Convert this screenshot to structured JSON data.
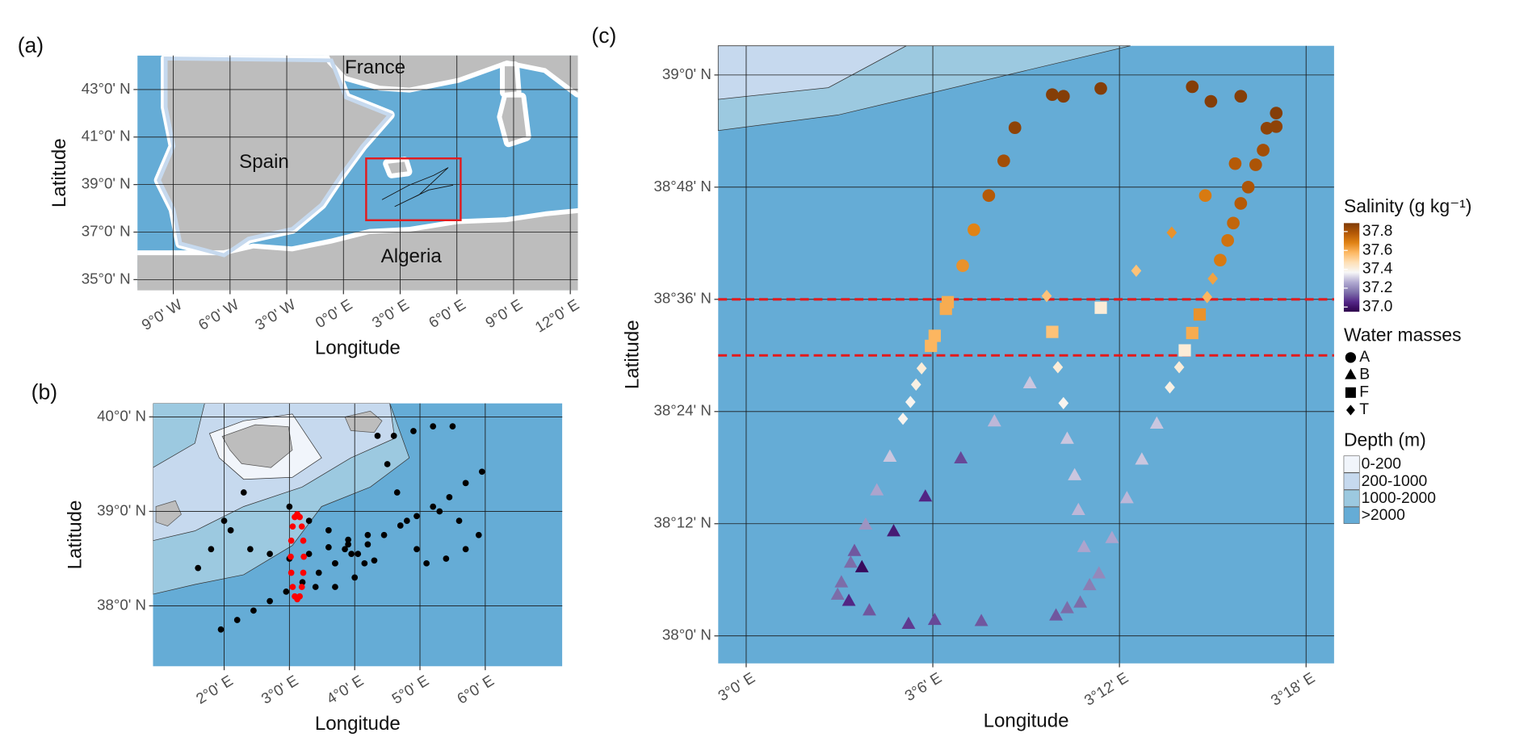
{
  "chart_data": [
    {
      "type": "map",
      "panel_label": "(a)",
      "xlabel": "Longitude",
      "ylabel": "Latitude",
      "xlim": [
        -10.9,
        12.4
      ],
      "ylim": [
        34.55,
        44.43
      ],
      "grid": true,
      "xticks": [
        {
          "value": -9,
          "label": "9°0' W"
        },
        {
          "value": -6,
          "label": "6°0' W"
        },
        {
          "value": -3,
          "label": "3°0' W"
        },
        {
          "value": 0,
          "label": "0°0' E"
        },
        {
          "value": 3,
          "label": "3°0' E"
        },
        {
          "value": 6,
          "label": "6°0' E"
        },
        {
          "value": 9,
          "label": "9°0' E"
        },
        {
          "value": 12,
          "label": "12°0' E"
        }
      ],
      "yticks": [
        {
          "value": 35,
          "label": "35°0' N"
        },
        {
          "value": 37,
          "label": "37°0' N"
        },
        {
          "value": 39,
          "label": "39°0' N"
        },
        {
          "value": 41,
          "label": "41°0' N"
        },
        {
          "value": 43,
          "label": "43°0' N"
        }
      ],
      "annotations": [
        "France",
        "Spain",
        "Algeria"
      ],
      "box": {
        "x": [
          1.2,
          6.2
        ],
        "y": [
          37.5,
          40.1
        ],
        "color": "#e41a1c"
      }
    },
    {
      "type": "scatter",
      "panel_label": "(b)",
      "xlabel": "Longitude",
      "ylabel": "Latitude",
      "xlim": [
        0.91,
        7.18
      ],
      "ylim": [
        37.36,
        40.144
      ],
      "grid": true,
      "xticks": [
        {
          "value": 2,
          "label": "2°0' E"
        },
        {
          "value": 3,
          "label": "3°0' E"
        },
        {
          "value": 4,
          "label": "4°0' E"
        },
        {
          "value": 5,
          "label": "5°0' E"
        },
        {
          "value": 6,
          "label": "6°0' E"
        }
      ],
      "yticks": [
        {
          "value": 38,
          "label": "38°0' N"
        },
        {
          "value": 39,
          "label": "39°0' N"
        },
        {
          "value": 40,
          "label": "40°0' N"
        }
      ],
      "series": [
        {
          "color": "#000000",
          "x": [
            1.95,
            2.2,
            2.45,
            2.7,
            2.95,
            3.2,
            3.45,
            3.7,
            3.95,
            4.2,
            4.45,
            4.7,
            4.95,
            5.2,
            5.45,
            5.7,
            5.95,
            5.5,
            5.2,
            4.9,
            4.6,
            4.35,
            4.5,
            4.65,
            4.8,
            4.95,
            5.1,
            5.4,
            5.7,
            5.9,
            5.6,
            5.3,
            1.6,
            1.8,
            2.0,
            2.3,
            2.1,
            2.4,
            2.7,
            3.0,
            3.3,
            3.6,
            3.9,
            4.2,
            3.0,
            3.3,
            3.6,
            3.9,
            3.7,
            4.05,
            3.85,
            4.15,
            3.4,
            3.7,
            4.0,
            4.3
          ],
          "y": [
            37.75,
            37.85,
            37.95,
            38.05,
            38.15,
            38.25,
            38.35,
            38.45,
            38.55,
            38.65,
            38.75,
            38.85,
            38.95,
            39.05,
            39.15,
            39.3,
            39.42,
            39.9,
            39.9,
            39.85,
            39.8,
            39.8,
            39.5,
            39.2,
            38.9,
            38.6,
            38.45,
            38.5,
            38.6,
            38.75,
            38.9,
            39.0,
            38.4,
            38.6,
            38.9,
            39.2,
            38.8,
            38.6,
            38.55,
            38.5,
            38.55,
            38.62,
            38.7,
            38.75,
            39.05,
            38.9,
            38.8,
            38.65,
            38.45,
            38.55,
            38.6,
            38.45,
            38.2,
            38.2,
            38.3,
            38.48
          ]
        },
        {
          "color": "#ff0000",
          "x": [
            3.22,
            3.212,
            3.19,
            3.158,
            3.12,
            3.082,
            3.05,
            3.028,
            3.02,
            3.028,
            3.05,
            3.082,
            3.12,
            3.158,
            3.19,
            3.212
          ],
          "y": [
            38.52,
            38.69,
            38.84,
            38.94,
            38.97,
            38.94,
            38.84,
            38.69,
            38.52,
            38.35,
            38.2,
            38.1,
            38.07,
            38.1,
            38.2,
            38.35
          ]
        }
      ]
    },
    {
      "type": "scatter",
      "panel_label": "(c)",
      "xlabel": "Longitude",
      "ylabel": "Latitude",
      "xlim": [
        2.985,
        3.315
      ],
      "ylim": [
        37.951,
        39.052
      ],
      "grid": true,
      "xticks": [
        {
          "value": 3.0,
          "label": "3°0' E"
        },
        {
          "value": 3.1,
          "label": "3°6' E"
        },
        {
          "value": 3.2,
          "label": "3°12' E"
        },
        {
          "value": 3.3,
          "label": "3°18' E"
        }
      ],
      "yticks": [
        {
          "value": 38.0,
          "label": "38°0' N"
        },
        {
          "value": 38.2,
          "label": "38°12' N"
        },
        {
          "value": 38.4,
          "label": "38°24' N"
        },
        {
          "value": 38.6,
          "label": "38°36' N"
        },
        {
          "value": 38.8,
          "label": "38°48' N"
        },
        {
          "value": 39.0,
          "label": "39°0' N"
        }
      ],
      "hlines": [
        {
          "y": 38.6,
          "color": "#e41a1c"
        },
        {
          "y": 38.5,
          "color": "#e41a1c"
        }
      ],
      "colorbar": {
        "title": "Salinity (g  kg⁻¹)",
        "lim": [
          36.95,
          37.89
        ],
        "ticks": [
          {
            "value": 37,
            "label": "37.0"
          },
          37.2,
          37.4,
          37.6,
          37.8
        ],
        "colors": [
          "#2d004b",
          "#542788",
          "#8073ac",
          "#b2abd2",
          "#f7f7f7",
          "#fee0b6",
          "#fdb863",
          "#e08214",
          "#b35806",
          "#7f3b08"
        ]
      },
      "legend_title": "Water masses",
      "series": [
        {
          "name": "A",
          "marker": "circle",
          "x": [
            3.164,
            3.17,
            3.19,
            3.239,
            3.249,
            3.265,
            3.284,
            3.279,
            3.284,
            3.277,
            3.273,
            3.262,
            3.144,
            3.138,
            3.13,
            3.269,
            3.265,
            3.261,
            3.258,
            3.254,
            3.246,
            3.122,
            3.116
          ],
          "y": [
            38.965,
            38.962,
            38.976,
            38.979,
            38.953,
            38.962,
            38.932,
            38.905,
            38.908,
            38.866,
            38.84,
            38.842,
            38.906,
            38.847,
            38.785,
            38.8,
            38.771,
            38.736,
            38.705,
            38.67,
            38.785,
            38.724,
            38.66
          ],
          "salinity": [
            37.88,
            37.88,
            37.88,
            37.88,
            37.88,
            37.88,
            37.88,
            37.86,
            37.86,
            37.82,
            37.8,
            37.78,
            37.86,
            37.82,
            37.78,
            37.8,
            37.78,
            37.75,
            37.72,
            37.7,
            37.7,
            37.68,
            37.65
          ]
        },
        {
          "name": "B",
          "marker": "triangle",
          "x": [
            3.152,
            3.133,
            3.115,
            3.172,
            3.22,
            3.212,
            3.204,
            3.196,
            3.189,
            3.184,
            3.179,
            3.172,
            3.166,
            3.126,
            3.101,
            3.087,
            3.066,
            3.055,
            3.049,
            3.051,
            3.056,
            3.058,
            3.062,
            3.079,
            3.096,
            3.064,
            3.07,
            3.077,
            3.176,
            3.178,
            3.181
          ],
          "y": [
            38.45,
            38.382,
            38.316,
            38.351,
            38.378,
            38.314,
            38.245,
            38.174,
            38.111,
            38.09,
            38.059,
            38.049,
            38.036,
            38.026,
            38.028,
            38.021,
            38.045,
            38.062,
            38.073,
            38.095,
            38.13,
            38.151,
            38.122,
            38.186,
            38.248,
            38.198,
            38.259,
            38.319,
            38.286,
            38.224,
            38.158
          ],
          "salinity": [
            37.3,
            37.28,
            37.1,
            37.3,
            37.3,
            37.3,
            37.28,
            37.25,
            37.2,
            37.18,
            37.15,
            37.15,
            37.12,
            37.12,
            37.1,
            37.08,
            37.12,
            37.05,
            37.15,
            37.15,
            37.15,
            37.12,
            36.98,
            37.02,
            37.05,
            37.22,
            37.25,
            37.3,
            37.3,
            37.28,
            37.25
          ]
        },
        {
          "name": "F",
          "marker": "square",
          "x": [
            3.108,
            3.107,
            3.101,
            3.099,
            3.19,
            3.164,
            3.243,
            3.239,
            3.235
          ],
          "y": [
            38.595,
            38.583,
            38.535,
            38.517,
            38.585,
            38.542,
            38.573,
            38.54,
            38.509
          ],
          "salinity": [
            37.6,
            37.6,
            37.58,
            37.58,
            37.42,
            37.55,
            37.65,
            37.6,
            37.42
          ]
        },
        {
          "name": "T",
          "marker": "diamond",
          "x": [
            3.228,
            3.209,
            3.161,
            3.25,
            3.247,
            3.232,
            3.227,
            3.167,
            3.17,
            3.094,
            3.091,
            3.088,
            3.084
          ],
          "y": [
            38.719,
            38.651,
            38.606,
            38.637,
            38.604,
            38.479,
            38.443,
            38.479,
            38.415,
            38.477,
            38.448,
            38.417,
            38.387
          ],
          "salinity": [
            37.65,
            37.55,
            37.55,
            37.62,
            37.58,
            37.42,
            37.4,
            37.42,
            37.38,
            37.42,
            37.4,
            37.38,
            37.38
          ]
        }
      ],
      "depth_legend": {
        "title": "Depth (m)",
        "categories": [
          "0-200",
          "200-1000",
          "1000-2000",
          ">2000"
        ],
        "colors": [
          "#f1f5fb",
          "#c6d9ee",
          "#9cc9e0",
          "#65acd6"
        ]
      }
    }
  ]
}
